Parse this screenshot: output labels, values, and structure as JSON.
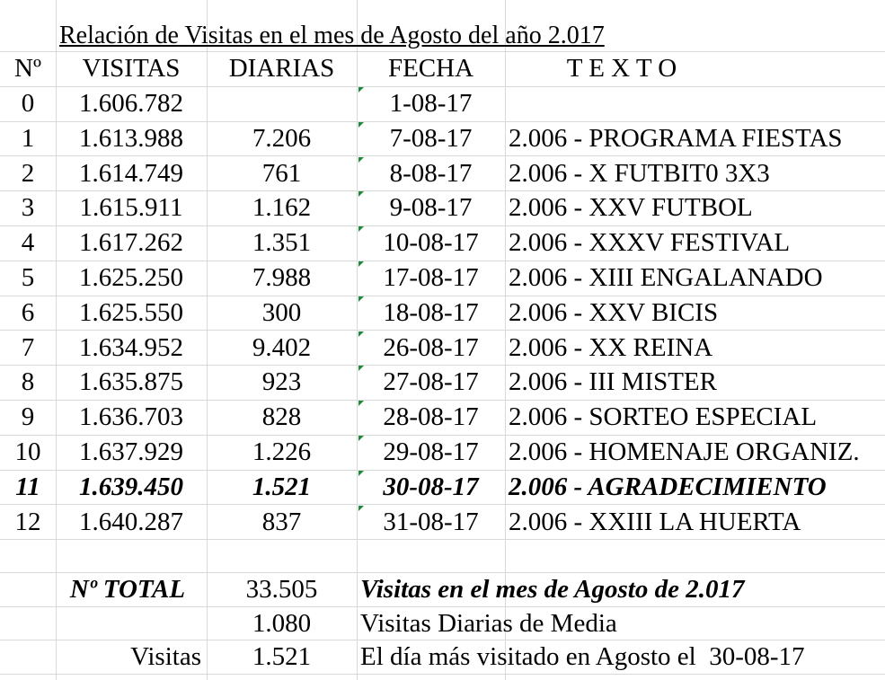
{
  "title": "Relación de Visitas en el mes de Agosto del año 2.017",
  "headers": {
    "n": "Nº",
    "visitas": "VISITAS",
    "diarias": "DIARIAS",
    "fecha": "FECHA",
    "texto": "T E X T O"
  },
  "rows": [
    {
      "n": "0",
      "visitas": "1.606.782",
      "diarias": "",
      "fecha": "1-08-17",
      "texto": ""
    },
    {
      "n": "1",
      "visitas": "1.613.988",
      "diarias": "7.206",
      "fecha": "7-08-17",
      "texto": "2.006 - PROGRAMA FIESTAS"
    },
    {
      "n": "2",
      "visitas": "1.614.749",
      "diarias": "761",
      "fecha": "8-08-17",
      "texto": "2.006 - X FUTBIT0 3X3"
    },
    {
      "n": "3",
      "visitas": "1.615.911",
      "diarias": "1.162",
      "fecha": "9-08-17",
      "texto": "2.006 - XXV FUTBOL"
    },
    {
      "n": "4",
      "visitas": "1.617.262",
      "diarias": "1.351",
      "fecha": "10-08-17",
      "texto": "2.006 - XXXV FESTIVAL"
    },
    {
      "n": "5",
      "visitas": "1.625.250",
      "diarias": "7.988",
      "fecha": "17-08-17",
      "texto": "2.006 - XIII ENGALANADO"
    },
    {
      "n": "6",
      "visitas": "1.625.550",
      "diarias": "300",
      "fecha": "18-08-17",
      "texto": "2.006 - XXV BICIS"
    },
    {
      "n": "7",
      "visitas": "1.634.952",
      "diarias": "9.402",
      "fecha": "26-08-17",
      "texto": "2.006 - XX REINA"
    },
    {
      "n": "8",
      "visitas": "1.635.875",
      "diarias": "923",
      "fecha": "27-08-17",
      "texto": "2.006 - III MISTER"
    },
    {
      "n": "9",
      "visitas": "1.636.703",
      "diarias": "828",
      "fecha": "28-08-17",
      "texto": "2.006 - SORTEO ESPECIAL"
    },
    {
      "n": "10",
      "visitas": "1.637.929",
      "diarias": "1.226",
      "fecha": "29-08-17",
      "texto": "2.006 - HOMENAJE ORGANIZ."
    },
    {
      "n": "11",
      "visitas": "1.639.450",
      "diarias": "1.521",
      "fecha": "30-08-17",
      "texto": "2.006 - AGRADECIMIENTO",
      "highlight": true
    },
    {
      "n": "12",
      "visitas": "1.640.287",
      "diarias": "837",
      "fecha": "31-08-17",
      "texto": "2.006 - XXIII LA HUERTA"
    }
  ],
  "summary": {
    "total_label": "Nº TOTAL",
    "total_value": "33.505",
    "total_text": "Visitas en el mes de Agosto de 2.017",
    "avg_value": "1.080",
    "avg_text": "Visitas Diarias de Media",
    "max_label": "Visitas",
    "max_value": "1.521",
    "max_text": "El día más visitado en Agosto el  30-08-17"
  },
  "colors": {
    "gridline": "#d9d9d9",
    "cell_marker": "#1d8a3a",
    "text": "#000000"
  }
}
